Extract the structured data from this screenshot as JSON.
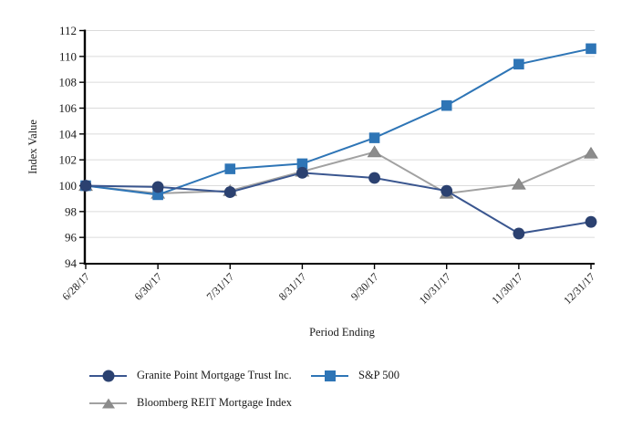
{
  "chart_data": {
    "type": "line",
    "title": "",
    "x": [
      "6/28/17",
      "6/30/17",
      "7/31/17",
      "8/31/17",
      "9/30/17",
      "10/31/17",
      "11/30/17",
      "12/31/17"
    ],
    "xlabel": "Period Ending",
    "ylabel": "Index Value",
    "ylim": [
      94,
      112
    ],
    "ytick_step": 2,
    "yticks": [
      94,
      96,
      98,
      100,
      102,
      104,
      106,
      108,
      110,
      112
    ],
    "grid": true,
    "grid_color": "#DBDBDB",
    "axis_color": "#000000",
    "legend_position": "bottom",
    "series": [
      {
        "name": "Granite Point Mortgage Trust Inc.",
        "marker": "circle",
        "color": "#2B4170",
        "line_color": "#3A568F",
        "values": [
          100.0,
          99.9,
          99.5,
          101.0,
          100.6,
          99.6,
          96.3,
          97.2
        ]
      },
      {
        "name": "S&P 500",
        "marker": "square",
        "color": "#2E75B6",
        "line_color": "#2E75B6",
        "values": [
          100.0,
          99.3,
          101.3,
          101.7,
          103.7,
          106.2,
          109.4,
          110.6
        ]
      },
      {
        "name": "Bloomberg REIT Mortgage Index",
        "marker": "triangle",
        "color": "#8C8C8C",
        "line_color": "#A1A1A1",
        "edge_color": "#7F7F7F",
        "values": [
          100.0,
          99.4,
          99.6,
          101.1,
          102.6,
          99.4,
          100.1,
          102.5
        ]
      }
    ]
  }
}
